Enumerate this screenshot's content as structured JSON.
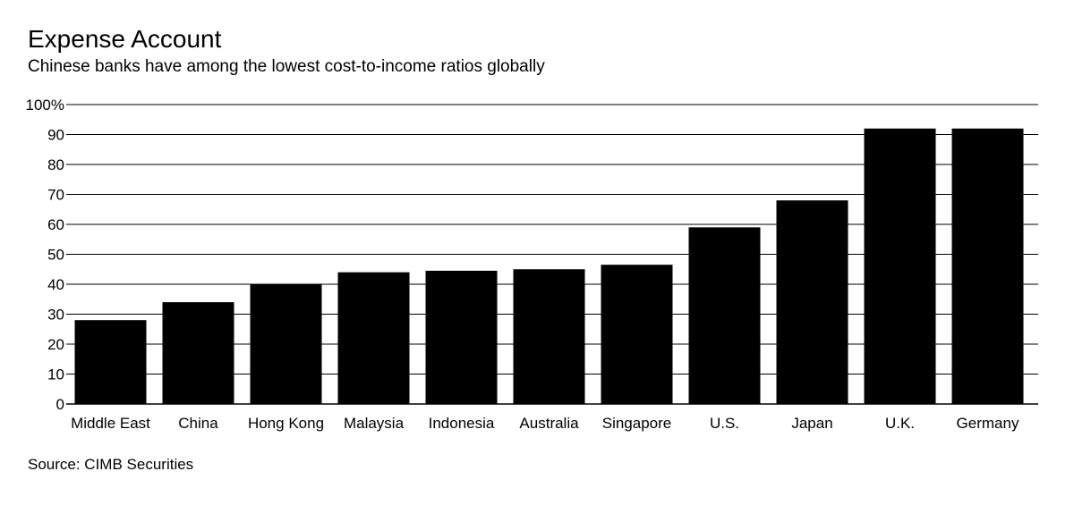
{
  "chart_data": {
    "type": "bar",
    "title": "Expense Account",
    "subtitle": "Chinese banks have among the lowest cost-to-income ratios globally",
    "source": "Source: CIMB Securities",
    "categories": [
      "Middle East",
      "China",
      "Hong Kong",
      "Malaysia",
      "Indonesia",
      "Australia",
      "Singapore",
      "U.S.",
      "Japan",
      "U.K.",
      "Germany"
    ],
    "values": [
      28,
      34,
      40,
      44,
      44.5,
      45,
      46.5,
      59,
      68,
      92,
      92
    ],
    "yticks": [
      "0",
      "10",
      "20",
      "30",
      "40",
      "50",
      "60",
      "70",
      "80",
      "90",
      "100%"
    ],
    "ylim": [
      0,
      100
    ],
    "grid": true,
    "bar_color": "#000000"
  }
}
